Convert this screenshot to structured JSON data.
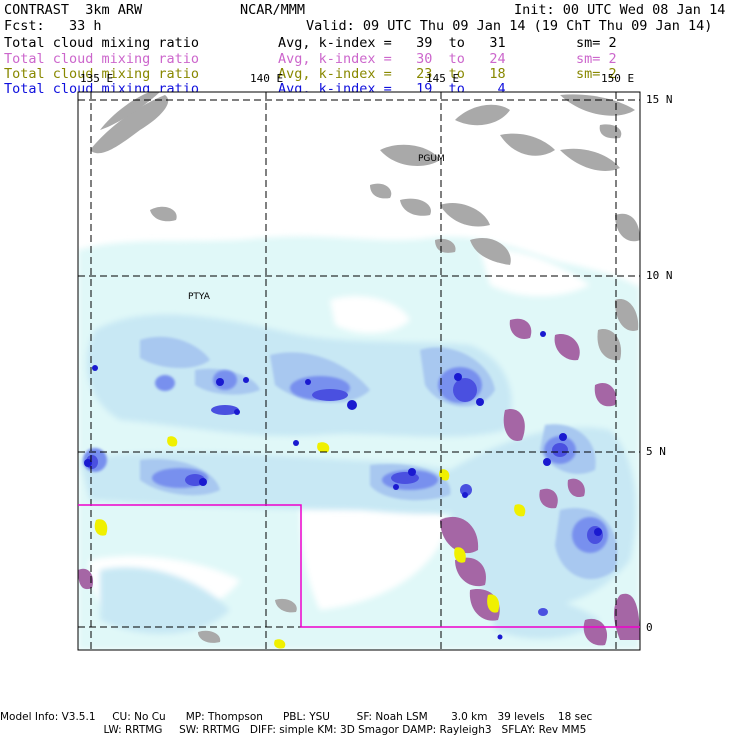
{
  "header": {
    "model": "CONTRAST  3km ARW",
    "org": "NCAR/MMM",
    "init": "Init: 00 UTC Wed 08 Jan 14",
    "fcst": "Fcst:   33 h",
    "valid": "Valid: 09 UTC Thu 09 Jan 14 (19 ChT Thu 09 Jan 14)",
    "fields": [
      {
        "name": "Total cloud mixing ratio",
        "range": "Avg, k-index =   39  to   31",
        "sm": "sm= 2",
        "color": "#000000"
      },
      {
        "name": "Total cloud mixing ratio",
        "range": "Avg, k-index =   30  to   24",
        "sm": "sm= 2",
        "color": "#cc66cc"
      },
      {
        "name": "Total cloud mixing ratio",
        "range": "Avg, k-index =   23  to   18",
        "sm": "sm= 2",
        "color": "#888800"
      },
      {
        "name": "Total cloud mixing ratio",
        "range": "Avg, k-index =   19  to    4",
        "sm": "",
        "color": "#1010dd"
      }
    ]
  },
  "map": {
    "lon_labels": [
      "135 E",
      "140 E",
      "145 E",
      "150 E"
    ],
    "lat_labels": [
      "15 N",
      "10 N",
      "5 N",
      "0"
    ],
    "stations": [
      "PGUM",
      "PTYA"
    ],
    "colors": {
      "gray_cloud": "#a9a9a9",
      "purple_cloud": "#a566a5",
      "yellow_cloud": "#f0f000",
      "light_cyan": "#e0f8f8",
      "pale_blue": "#c8e8f4",
      "light_blue": "#a8c8f0",
      "mid_blue": "#7890ee",
      "blue": "#4a50e0",
      "dark_blue": "#1a1ad0",
      "domain_box": "#ee00cc"
    }
  },
  "footer": {
    "line1": "Model Info: V3.5.1     CU: No Cu      MP: Thompson      PBL: YSU        SF: Noah LSM       3.0 km   39 levels    18 sec",
    "line2": "                               LW: RRTMG     SW: RRTMG   DIFF: simple KM: 3D Smagor DAMP: Rayleigh3   SFLAY: Rev MM5"
  }
}
